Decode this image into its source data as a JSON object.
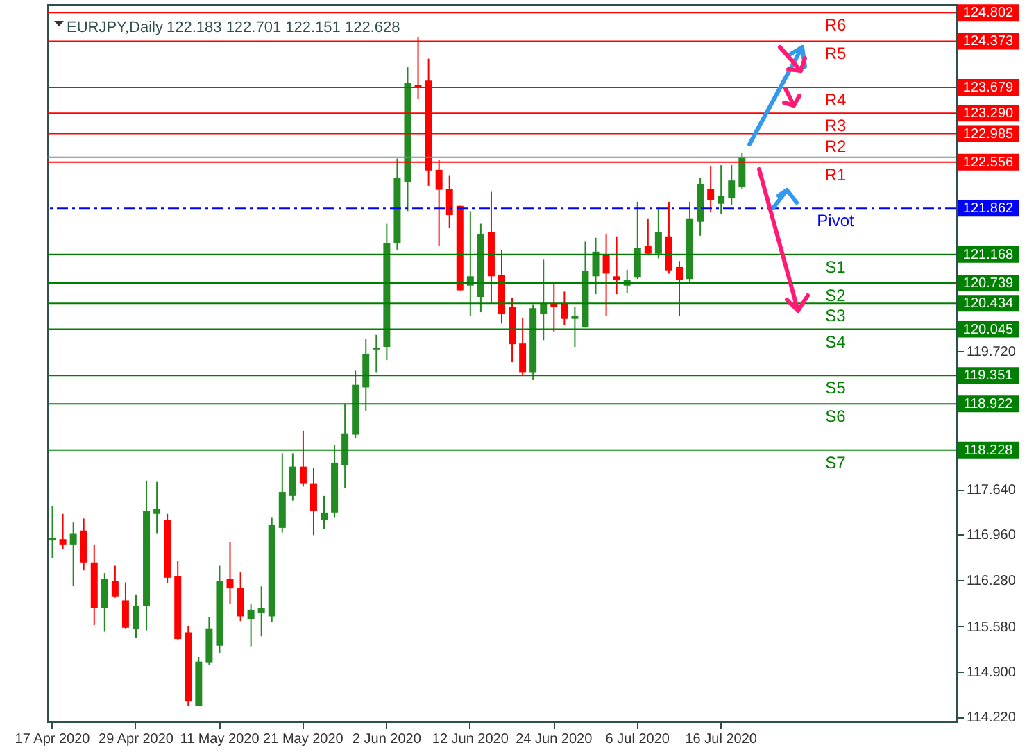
{
  "chart_data": {
    "type": "candlestick",
    "title": "EURJPY,Daily",
    "subtitle": "122.183 122.701 122.151 122.628",
    "categories": [
      "17 Apr 2020",
      null,
      null,
      null,
      null,
      null,
      null,
      null,
      "29 Apr 2020",
      null,
      null,
      null,
      null,
      null,
      null,
      null,
      "11 May 2020",
      null,
      null,
      null,
      null,
      null,
      null,
      null,
      "21 May 2020",
      null,
      null,
      null,
      null,
      null,
      null,
      null,
      "2 Jun 2020",
      null,
      null,
      null,
      null,
      null,
      null,
      null,
      "12 Jun 2020",
      null,
      null,
      null,
      null,
      null,
      null,
      null,
      "24 Jun 2020",
      null,
      null,
      null,
      null,
      null,
      null,
      null,
      "6 Jul 2020",
      null,
      null,
      null,
      null,
      null,
      null,
      null,
      "16 Jul 2020",
      null,
      null,
      null,
      null,
      null,
      null,
      null,
      null,
      null,
      null,
      null,
      null,
      null,
      null,
      null,
      null,
      null,
      null,
      null,
      null,
      null,
      null
    ],
    "ohlc": [
      [
        116.87,
        117.39,
        116.6,
        116.91
      ],
      [
        116.89,
        117.27,
        116.74,
        116.81
      ],
      [
        116.81,
        117.14,
        116.19,
        116.97
      ],
      [
        117.02,
        117.2,
        116.42,
        116.54
      ],
      [
        116.54,
        116.81,
        115.6,
        115.85
      ],
      [
        115.85,
        116.38,
        115.5,
        116.29
      ],
      [
        116.26,
        116.49,
        116.01,
        116.03
      ],
      [
        115.97,
        116.24,
        115.55,
        115.56
      ],
      [
        115.54,
        116.06,
        115.41,
        115.89
      ],
      [
        115.89,
        117.77,
        115.52,
        117.31
      ],
      [
        117.27,
        117.75,
        116.97,
        117.35
      ],
      [
        117.18,
        117.27,
        116.23,
        116.31
      ],
      [
        116.33,
        116.56,
        115.37,
        115.39
      ],
      [
        115.49,
        115.58,
        114.39,
        114.45
      ],
      [
        114.39,
        115.12,
        114.39,
        115.05
      ],
      [
        115.04,
        115.72,
        115.0,
        115.55
      ],
      [
        115.29,
        116.49,
        115.18,
        116.26
      ],
      [
        116.29,
        116.85,
        115.92,
        116.15
      ],
      [
        116.16,
        116.39,
        115.66,
        115.73
      ],
      [
        115.69,
        115.91,
        115.28,
        115.83
      ],
      [
        115.78,
        116.18,
        115.43,
        115.85
      ],
      [
        115.73,
        117.22,
        115.64,
        117.1
      ],
      [
        117.06,
        118.18,
        116.99,
        117.6
      ],
      [
        117.54,
        118.18,
        117.47,
        117.98
      ],
      [
        117.98,
        118.52,
        117.68,
        117.73
      ],
      [
        117.73,
        117.96,
        116.95,
        117.31
      ],
      [
        117.18,
        117.54,
        117.04,
        117.29
      ],
      [
        117.29,
        118.31,
        117.22,
        118.04
      ],
      [
        118.0,
        118.92,
        117.66,
        118.48
      ],
      [
        118.46,
        119.42,
        118.41,
        119.21
      ],
      [
        119.17,
        119.9,
        118.81,
        119.67
      ],
      [
        119.74,
        119.96,
        119.4,
        119.77
      ],
      [
        119.78,
        121.63,
        119.58,
        121.34
      ],
      [
        121.34,
        122.61,
        121.24,
        122.32
      ],
      [
        122.26,
        123.98,
        121.82,
        123.75
      ],
      [
        123.72,
        124.43,
        123.51,
        123.68
      ],
      [
        123.78,
        124.11,
        122.2,
        122.43
      ],
      [
        122.44,
        122.59,
        121.3,
        122.14
      ],
      [
        122.15,
        122.36,
        121.57,
        121.76
      ],
      [
        121.9,
        121.9,
        120.63,
        120.63
      ],
      [
        120.7,
        121.82,
        120.24,
        120.84
      ],
      [
        120.53,
        121.63,
        120.3,
        121.48
      ],
      [
        121.5,
        122.11,
        120.43,
        120.84
      ],
      [
        120.86,
        121.23,
        120.13,
        120.28
      ],
      [
        120.38,
        120.52,
        119.55,
        119.82
      ],
      [
        119.83,
        120.21,
        119.36,
        119.4
      ],
      [
        119.4,
        120.42,
        119.28,
        120.36
      ],
      [
        120.28,
        121.09,
        119.88,
        120.44
      ],
      [
        120.44,
        120.73,
        120.01,
        120.38
      ],
      [
        120.44,
        120.61,
        120.11,
        120.2
      ],
      [
        120.2,
        120.38,
        119.78,
        120.24
      ],
      [
        120.07,
        121.36,
        120.07,
        120.92
      ],
      [
        120.84,
        121.42,
        120.57,
        121.21
      ],
      [
        121.17,
        121.48,
        120.24,
        120.88
      ],
      [
        120.84,
        121.44,
        120.57,
        120.78
      ],
      [
        120.7,
        120.94,
        120.59,
        120.79
      ],
      [
        120.82,
        121.96,
        120.8,
        121.27
      ],
      [
        121.3,
        121.71,
        121.18,
        121.18
      ],
      [
        121.18,
        121.88,
        121.11,
        121.5
      ],
      [
        121.44,
        121.96,
        120.88,
        120.93
      ],
      [
        120.98,
        121.07,
        120.24,
        120.78
      ],
      [
        120.8,
        121.96,
        120.74,
        121.71
      ],
      [
        121.66,
        122.32,
        121.45,
        122.23
      ],
      [
        122.15,
        122.49,
        121.8,
        121.99
      ],
      [
        121.93,
        122.51,
        121.78,
        122.05
      ],
      [
        122.01,
        122.51,
        121.91,
        122.28
      ],
      [
        122.183,
        122.701,
        122.151,
        122.628
      ],
      null,
      null,
      null,
      null,
      null,
      null,
      null,
      null,
      null,
      null,
      null,
      null,
      null,
      null,
      null,
      null,
      null,
      null,
      null,
      null
    ],
    "colors": [
      "#228b22",
      "#ff0000",
      "#228b22",
      "#ff0000",
      "#ff0000",
      "#228b22",
      "#ff0000",
      "#ff0000",
      "#228b22",
      "#228b22",
      "#228b22",
      "#ff0000",
      "#ff0000",
      "#ff0000",
      "#228b22",
      "#228b22",
      "#228b22",
      "#ff0000",
      "#ff0000",
      "#228b22",
      "#228b22",
      "#228b22",
      "#228b22",
      "#228b22",
      "#ff0000",
      "#ff0000",
      "#228b22",
      "#228b22",
      "#228b22",
      "#228b22",
      "#228b22",
      "#228b22",
      "#228b22",
      "#228b22",
      "#228b22",
      "#ff0000",
      "#ff0000",
      "#ff0000",
      "#ff0000",
      "#ff0000",
      "#228b22",
      "#228b22",
      "#ff0000",
      "#ff0000",
      "#ff0000",
      "#ff0000",
      "#228b22",
      "#228b22",
      "#ff0000",
      "#ff0000",
      "#228b22",
      "#228b22",
      "#228b22",
      "#ff0000",
      "#ff0000",
      "#228b22",
      "#228b22",
      "#ff0000",
      "#228b22",
      "#ff0000",
      "#ff0000",
      "#228b22",
      "#228b22",
      "#ff0000",
      "#228b22",
      "#228b22",
      "#228b22",
      null,
      null,
      null,
      null,
      null,
      null,
      null,
      null,
      null,
      null,
      null,
      null,
      null,
      null,
      null,
      null,
      null,
      null,
      null,
      null
    ],
    "ylim": [
      114.15,
      124.93
    ],
    "yticks": [
      {
        "value": 114.22,
        "label": "114.220"
      },
      {
        "value": 114.9,
        "label": "114.900"
      },
      {
        "value": 115.58,
        "label": "115.580"
      },
      {
        "value": 116.28,
        "label": "116.280"
      },
      {
        "value": 116.96,
        "label": "116.960"
      },
      {
        "value": 117.64,
        "label": "117.640"
      },
      {
        "value": 119.72,
        "label": "119.720"
      }
    ],
    "ref_lines": [
      {
        "axis": "y",
        "value": 124.802,
        "label": "R6",
        "color": "#ff0000"
      },
      {
        "axis": "y",
        "value": 124.373,
        "label": "R5",
        "color": "#ff0000"
      },
      {
        "axis": "y",
        "value": 123.679,
        "label": "R4",
        "color": "#ff0000"
      },
      {
        "axis": "y",
        "value": 123.29,
        "label": "R3",
        "color": "#ff0000"
      },
      {
        "axis": "y",
        "value": 122.985,
        "label": "R2",
        "color": "#ff0000"
      },
      {
        "axis": "y",
        "value": 122.556,
        "label": "R1",
        "color": "#ff0000"
      },
      {
        "axis": "y",
        "value": 122.628,
        "color": "#778899"
      },
      {
        "axis": "y",
        "value": 121.862,
        "label": "Pivot",
        "color": "#0000ff",
        "line_style": "dashed"
      },
      {
        "axis": "y",
        "value": 121.168,
        "label": "S1",
        "color": "#008000"
      },
      {
        "axis": "y",
        "value": 120.739,
        "label": "S2",
        "color": "#008000"
      },
      {
        "axis": "y",
        "value": 120.434,
        "label": "S3",
        "color": "#008000"
      },
      {
        "axis": "y",
        "value": 120.045,
        "label": "S4",
        "color": "#008000"
      },
      {
        "axis": "y",
        "value": 119.351,
        "label": "S5",
        "color": "#008000"
      },
      {
        "axis": "y",
        "value": 118.922,
        "label": "S6",
        "color": "#008000"
      },
      {
        "axis": "y",
        "value": 118.228,
        "label": "S7",
        "color": "#008000"
      }
    ],
    "annotations": [
      "124.802",
      "124.373",
      "123.679",
      "123.290",
      "122.985",
      "122.556",
      "121.862",
      "121.168",
      "120.739",
      "120.434",
      "120.045",
      "119.351",
      "118.922",
      "118.228"
    ],
    "grid": false
  }
}
